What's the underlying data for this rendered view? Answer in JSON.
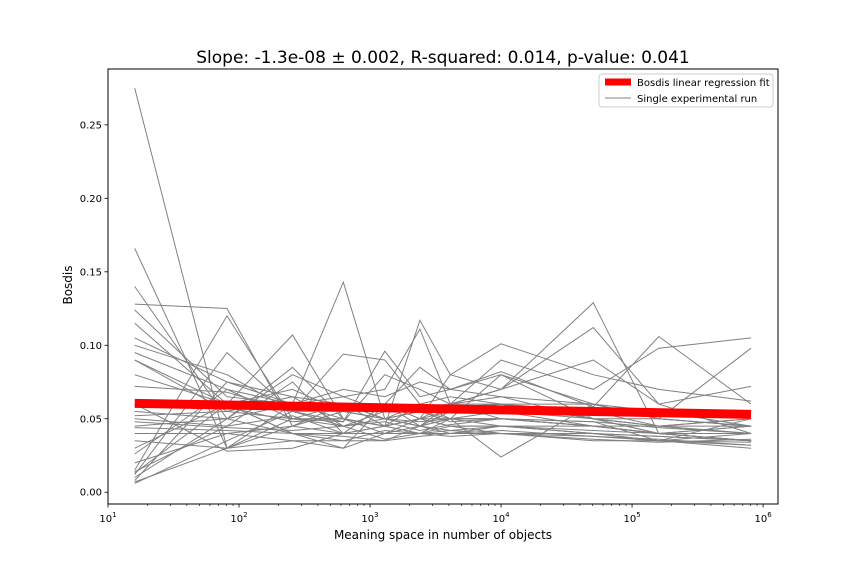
{
  "chart_data": {
    "type": "line",
    "title": "Slope: -1.3e-08 ± 0.002, R-squared: 0.014, p-value: 0.041",
    "xlabel": "Meaning space in number of objects",
    "ylabel": "Bosdis",
    "xscale": "log",
    "xlim": [
      10,
      1300000
    ],
    "ylim": [
      -0.008,
      0.288
    ],
    "x_ticks": [
      {
        "value": 10,
        "base": "10",
        "exp": "1"
      },
      {
        "value": 100,
        "base": "10",
        "exp": "2"
      },
      {
        "value": 1000,
        "base": "10",
        "exp": "3"
      },
      {
        "value": 10000,
        "base": "10",
        "exp": "4"
      },
      {
        "value": 100000,
        "base": "10",
        "exp": "5"
      },
      {
        "value": 1000000,
        "base": "10",
        "exp": "6"
      }
    ],
    "y_ticks": [
      {
        "value": 0.0,
        "label": "0.00"
      },
      {
        "value": 0.05,
        "label": "0.05"
      },
      {
        "value": 0.1,
        "label": "0.10"
      },
      {
        "value": 0.15,
        "label": "0.15"
      },
      {
        "value": 0.2,
        "label": "0.20"
      },
      {
        "value": 0.25,
        "label": "0.25"
      }
    ],
    "grid": false,
    "legend": {
      "position": "top-right",
      "entries": [
        {
          "label": "Bosdis linear regression fit",
          "color": "#ff0000",
          "style": "thick"
        },
        {
          "label": "Single experimental run",
          "color": "#808080",
          "style": "thin"
        }
      ]
    },
    "x": [
      16,
      81,
      256,
      625,
      1296,
      2401,
      4096,
      10000,
      50625,
      160000,
      810000
    ],
    "regression_fit": {
      "color": "#ff0000",
      "x": [
        16,
        810000
      ],
      "y": [
        0.0605,
        0.053
      ]
    },
    "runs_color": "#808080",
    "runs": [
      [
        0.275,
        0.03,
        0.06,
        0.055,
        0.05,
        0.055,
        0.048,
        0.05,
        0.045,
        0.04,
        0.045
      ],
      [
        0.166,
        0.03,
        0.045,
        0.04,
        0.06,
        0.045,
        0.05,
        0.05,
        0.048,
        0.035,
        0.04
      ],
      [
        0.14,
        0.05,
        0.08,
        0.065,
        0.055,
        0.06,
        0.055,
        0.06,
        0.055,
        0.045,
        0.05
      ],
      [
        0.128,
        0.125,
        0.045,
        0.055,
        0.05,
        0.045,
        0.055,
        0.055,
        0.05,
        0.05,
        0.045
      ],
      [
        0.124,
        0.065,
        0.06,
        0.05,
        0.045,
        0.05,
        0.055,
        0.06,
        0.05,
        0.04,
        0.045
      ],
      [
        0.115,
        0.06,
        0.055,
        0.055,
        0.06,
        0.05,
        0.045,
        0.045,
        0.04,
        0.035,
        0.05
      ],
      [
        0.105,
        0.075,
        0.065,
        0.06,
        0.06,
        0.055,
        0.06,
        0.065,
        0.05,
        0.045,
        0.045
      ],
      [
        0.1,
        0.08,
        0.055,
        0.045,
        0.05,
        0.055,
        0.05,
        0.055,
        0.045,
        0.04,
        0.04
      ],
      [
        0.095,
        0.07,
        0.05,
        0.06,
        0.05,
        0.045,
        0.05,
        0.05,
        0.045,
        0.045,
        0.04
      ],
      [
        0.09,
        0.055,
        0.05,
        0.05,
        0.045,
        0.05,
        0.06,
        0.05,
        0.045,
        0.04,
        0.04
      ],
      [
        0.08,
        0.06,
        0.07,
        0.055,
        0.05,
        0.048,
        0.05,
        0.05,
        0.045,
        0.04,
        0.035
      ],
      [
        0.072,
        0.068,
        0.055,
        0.06,
        0.045,
        0.05,
        0.045,
        0.045,
        0.045,
        0.04,
        0.035
      ],
      [
        0.062,
        0.058,
        0.048,
        0.05,
        0.04,
        0.05,
        0.05,
        0.045,
        0.042,
        0.04,
        0.035
      ],
      [
        0.055,
        0.05,
        0.04,
        0.04,
        0.04,
        0.045,
        0.04,
        0.045,
        0.04,
        0.038,
        0.035
      ],
      [
        0.05,
        0.045,
        0.052,
        0.04,
        0.045,
        0.04,
        0.045,
        0.04,
        0.04,
        0.035,
        0.032
      ],
      [
        0.048,
        0.044,
        0.042,
        0.045,
        0.036,
        0.04,
        0.042,
        0.04,
        0.035,
        0.035,
        0.03
      ],
      [
        0.044,
        0.042,
        0.04,
        0.038,
        0.035,
        0.038,
        0.04,
        0.042,
        0.038,
        0.036,
        0.032
      ],
      [
        0.04,
        0.04,
        0.035,
        0.03,
        0.04,
        0.04,
        0.038,
        0.04,
        0.036,
        0.034,
        0.036
      ],
      [
        0.035,
        0.03,
        0.035,
        0.035,
        0.042,
        0.04,
        0.04,
        0.04,
        0.038,
        0.035,
        0.034
      ],
      [
        0.03,
        0.06,
        0.04,
        0.035,
        0.035,
        0.045,
        0.042,
        0.045,
        0.04,
        0.038,
        0.035
      ],
      [
        0.026,
        0.07,
        0.06,
        0.143,
        0.05,
        0.06,
        0.065,
        0.06,
        0.05,
        0.045,
        0.05
      ],
      [
        0.015,
        0.12,
        0.05,
        0.045,
        0.055,
        0.058,
        0.06,
        0.07,
        0.129,
        0.04,
        0.035
      ],
      [
        0.013,
        0.06,
        0.107,
        0.05,
        0.045,
        0.06,
        0.05,
        0.08,
        0.06,
        0.05,
        0.045
      ],
      [
        0.012,
        0.095,
        0.055,
        0.048,
        0.096,
        0.065,
        0.07,
        0.082,
        0.058,
        0.106,
        0.06
      ],
      [
        0.01,
        0.05,
        0.085,
        0.05,
        0.045,
        0.117,
        0.08,
        0.07,
        0.09,
        0.06,
        0.04
      ],
      [
        0.008,
        0.075,
        0.06,
        0.065,
        0.07,
        0.111,
        0.06,
        0.06,
        0.06,
        0.05,
        0.045
      ],
      [
        0.006,
        0.035,
        0.055,
        0.094,
        0.09,
        0.06,
        0.058,
        0.06,
        0.05,
        0.045,
        0.04
      ],
      [
        0.007,
        0.03,
        0.05,
        0.048,
        0.08,
        0.07,
        0.06,
        0.09,
        0.07,
        0.098,
        0.105
      ],
      [
        0.014,
        0.045,
        0.075,
        0.04,
        0.06,
        0.05,
        0.08,
        0.101,
        0.08,
        0.07,
        0.062
      ],
      [
        0.02,
        0.04,
        0.045,
        0.06,
        0.05,
        0.045,
        0.06,
        0.07,
        0.112,
        0.06,
        0.072
      ],
      [
        0.06,
        0.028,
        0.03,
        0.04,
        0.045,
        0.04,
        0.05,
        0.024,
        0.06,
        0.05,
        0.098
      ],
      [
        0.09,
        0.06,
        0.04,
        0.03,
        0.06,
        0.085,
        0.07,
        0.08,
        0.05,
        0.04,
        0.035
      ],
      [
        0.045,
        0.05,
        0.06,
        0.07,
        0.065,
        0.075,
        0.07,
        0.065,
        0.06,
        0.055,
        0.045
      ],
      [
        0.052,
        0.055,
        0.065,
        0.045,
        0.048,
        0.042,
        0.046,
        0.05,
        0.048,
        0.044,
        0.04
      ]
    ]
  }
}
